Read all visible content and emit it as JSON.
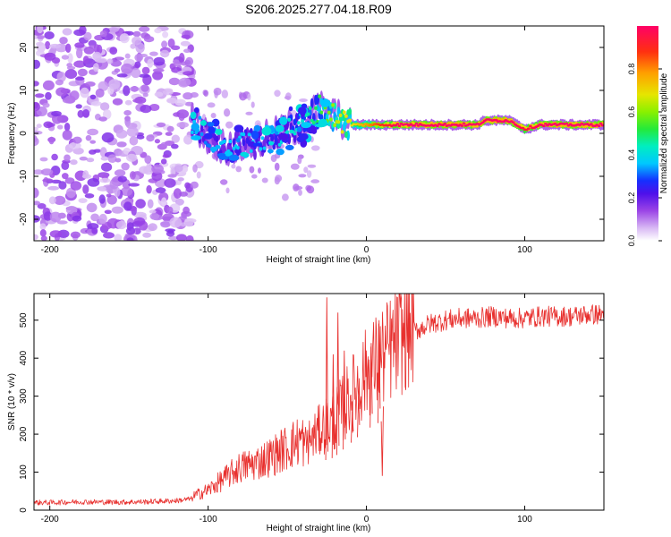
{
  "title": "S206.2025.277.04.18.R09",
  "chart_data": [
    {
      "type": "heatmap",
      "xlabel": "Height of straight line (km)",
      "ylabel": "Frequency (Hz)",
      "xlim": [
        -210,
        150
      ],
      "ylim": [
        -25,
        25
      ],
      "xticks": [
        -200,
        -100,
        0,
        100
      ],
      "yticks": [
        -20,
        -10,
        0,
        10,
        20
      ],
      "colorbar": {
        "label": "Normalized spectral amplitude",
        "range": [
          0,
          1
        ],
        "ticks": [
          0.0,
          0.2,
          0.4,
          0.6,
          0.8
        ]
      },
      "ridge": {
        "x": [
          -110,
          -100,
          -90,
          -80,
          -70,
          -60,
          -50,
          -40,
          -35,
          -30,
          -25,
          -20,
          -15,
          -10,
          -5,
          0,
          5,
          10,
          20,
          40,
          60,
          65,
          70,
          75,
          80,
          85,
          90,
          95,
          100,
          110,
          120,
          130,
          150
        ],
        "freq": [
          3,
          -1,
          -3,
          -3,
          -2,
          -1,
          1,
          2,
          4,
          6,
          5,
          4,
          3,
          2,
          2,
          2,
          2,
          2,
          2,
          2,
          2,
          2,
          2,
          3,
          3,
          3,
          3,
          2,
          1,
          2,
          2,
          2,
          2
        ],
        "amplitude": [
          0.3,
          0.25,
          0.3,
          0.3,
          0.3,
          0.3,
          0.35,
          0.35,
          0.4,
          0.45,
          0.5,
          0.55,
          0.6,
          0.6,
          0.65,
          0.7,
          0.75,
          0.8,
          0.9,
          0.92,
          0.95,
          0.9,
          0.9,
          0.92,
          0.95,
          0.95,
          0.92,
          0.9,
          0.85,
          0.9,
          0.92,
          0.92,
          0.92
        ]
      },
      "noise_region": [
        -210,
        -115
      ]
    },
    {
      "type": "line",
      "xlabel": "Height of straight line (km)",
      "ylabel": "SNR (10 * v/v)",
      "xlim": [
        -210,
        150
      ],
      "ylim": [
        0,
        570
      ],
      "xticks": [
        -200,
        -100,
        0,
        100
      ],
      "yticks": [
        0,
        100,
        200,
        300,
        400,
        500
      ],
      "series": [
        {
          "name": "SNR",
          "color": "#e8302e",
          "x": [
            -210,
            -200,
            -180,
            -160,
            -140,
            -120,
            -110,
            -100,
            -90,
            -80,
            -70,
            -60,
            -50,
            -40,
            -35,
            -30,
            -25,
            -20,
            -15,
            -10,
            -5,
            0,
            5,
            10,
            15,
            20,
            25,
            30,
            35,
            40,
            45,
            50,
            60,
            70,
            80,
            90,
            100,
            110,
            120,
            130,
            140,
            150
          ],
          "values": [
            20,
            20,
            22,
            21,
            22,
            25,
            30,
            45,
            70,
            95,
            105,
            120,
            140,
            160,
            180,
            200,
            220,
            230,
            260,
            290,
            320,
            350,
            370,
            390,
            410,
            430,
            450,
            470,
            480,
            490,
            495,
            500,
            505,
            505,
            510,
            505,
            505,
            510,
            510,
            510,
            515,
            515
          ],
          "spikes": [
            {
              "x": -25,
              "value": 560
            },
            {
              "x": -21,
              "value": 410
            },
            {
              "x": -18,
              "value": 520
            },
            {
              "x": -14,
              "value": 420
            },
            {
              "x": -9,
              "value": 260
            },
            {
              "x": -5,
              "value": 300
            },
            {
              "x": 3,
              "value": 440
            },
            {
              "x": 8,
              "value": 500
            },
            {
              "x": 10,
              "value": 90
            }
          ]
        }
      ]
    }
  ]
}
